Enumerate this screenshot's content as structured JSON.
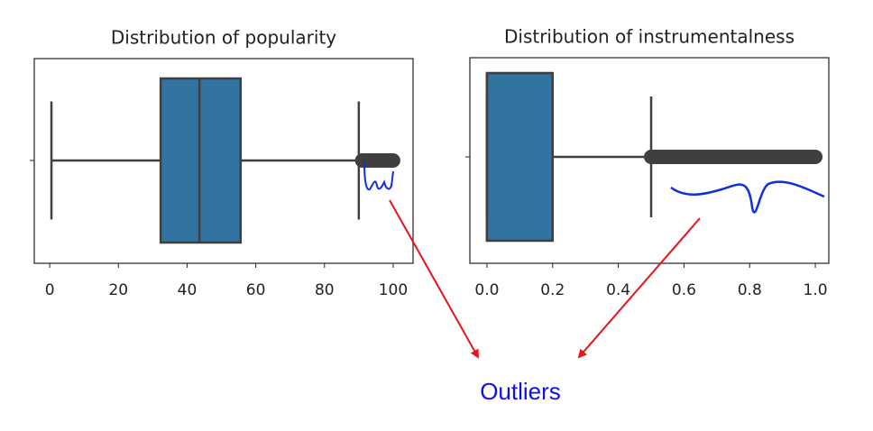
{
  "chart_data": [
    {
      "type": "box",
      "title": "Distribution of popularity",
      "color": "#3274a1",
      "whislo": 0.5,
      "q1": 32.3,
      "med": 43.6,
      "q3": 55.6,
      "whishi": 90,
      "outlier_range": [
        91,
        100
      ],
      "xlim": [
        -4.5,
        105.8
      ],
      "xticks": [
        0,
        20,
        40,
        60,
        80,
        100
      ]
    },
    {
      "type": "box",
      "title": "Distribution of instrumentalness",
      "color": "#3274a1",
      "whislo": 0,
      "q1": 0,
      "med": 0,
      "q3": 0.2,
      "whishi": 0.5,
      "outlier_range": [
        0.5,
        1.0
      ],
      "xlim": [
        -0.052,
        1.041
      ],
      "xticks": [
        {
          "value": 0,
          "label": "0.0"
        },
        0.2,
        0.4,
        0.6,
        0.8,
        {
          "value": 1,
          "label": "1.0"
        }
      ]
    }
  ],
  "annotation": "Outliers"
}
